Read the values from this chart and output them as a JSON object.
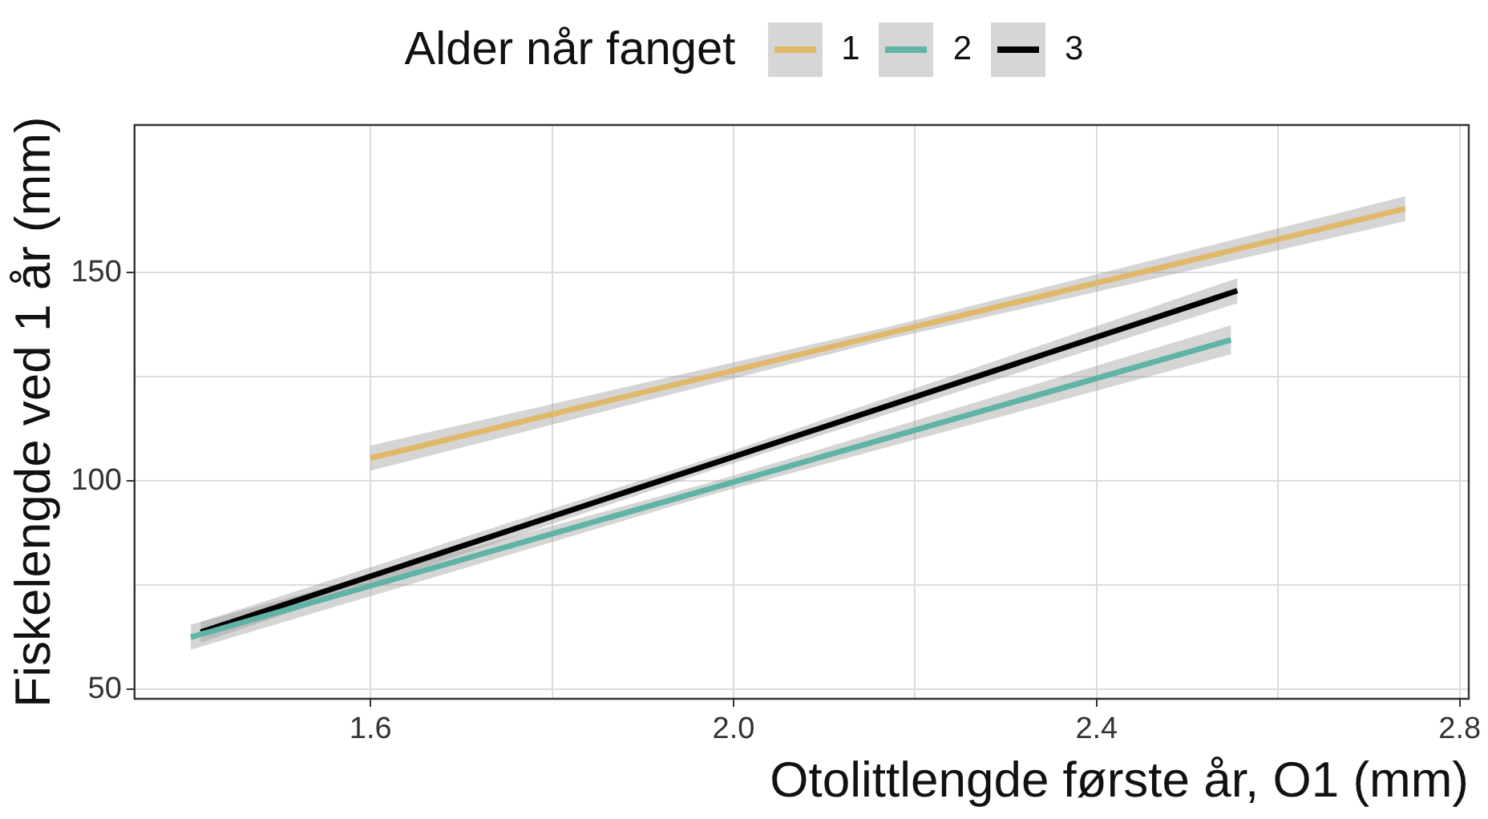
{
  "chart_data": {
    "type": "line",
    "xlabel": "Otolittlengde første år, O1 (mm)",
    "ylabel": "Fiskelengde ved 1 år (mm)",
    "legend_title": "Alder når fanget",
    "legend": "top",
    "grid": true,
    "marker": "none",
    "line_style": "solid",
    "xlim": [
      1.34,
      2.81
    ],
    "xticks": [
      1.6,
      {
        "value": 1.8,
        "label": null
      },
      "2.0",
      {
        "value": 2.2,
        "label": null
      },
      2.4,
      {
        "value": 2.6,
        "label": null
      },
      "2.8"
    ],
    "ylim": [
      47.7,
      185.5
    ],
    "yticks": [
      50,
      {
        "value": 75,
        "label": null
      },
      100,
      {
        "value": 125,
        "label": null
      },
      150
    ],
    "series": [
      {
        "name": "1",
        "color": "#e0b86a",
        "x": [
          1.6,
          2.17,
          2.74
        ],
        "values": [
          105.5,
          135.5,
          165.4
        ],
        "lower": [
          102.5,
          134,
          162.4
        ],
        "upper": [
          108.5,
          137,
          168.4
        ]
      },
      {
        "name": "2",
        "color": "#5fb3a7",
        "x": [
          1.402,
          1.975,
          2.548
        ],
        "values": [
          62.5,
          98.2,
          133.9
        ],
        "lower": [
          59.5,
          96.7,
          130.4
        ],
        "upper": [
          65.5,
          99.7,
          137.4
        ]
      },
      {
        "name": "3",
        "color": "#000000",
        "x": [
          1.413,
          1.984,
          2.555
        ],
        "values": [
          63.7,
          104.7,
          145.7
        ],
        "lower": [
          61.2,
          103.2,
          142.7
        ],
        "upper": [
          66.2,
          106.2,
          148.7
        ]
      }
    ]
  }
}
